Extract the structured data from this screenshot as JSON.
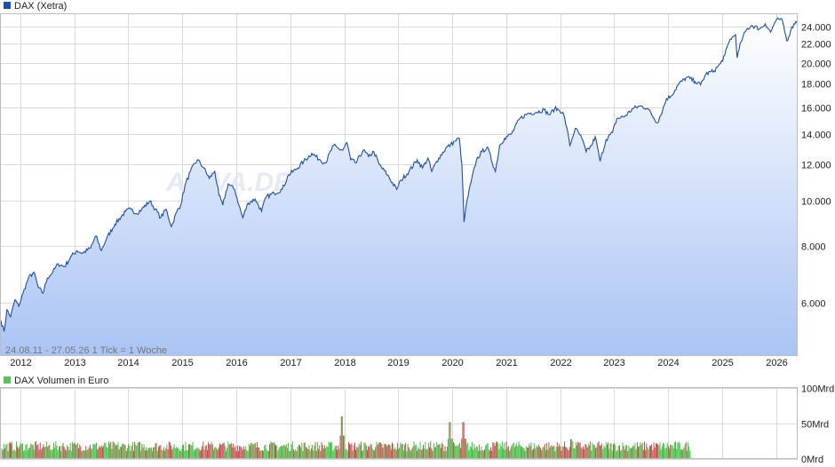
{
  "chart_data": [
    {
      "type": "area",
      "legend": "DAX (Xetra)",
      "range_note": "24.08.11 - 27.05.26   1 Tick = 1 Woche",
      "watermark": "ARIVA.DE",
      "y_scale": "log",
      "ylim": [
        4600,
        25500
      ],
      "y_ticks": [
        6000,
        8000,
        10000,
        12000,
        14000,
        16000,
        18000,
        20000,
        22000,
        24000
      ],
      "y_tick_labels": [
        "6.000",
        "8.000",
        "10.000",
        "12.000",
        "14.000",
        "16.000",
        "18.000",
        "20.000",
        "22.000",
        "24.000"
      ],
      "x_range": [
        2011.64,
        2026.4
      ],
      "x_ticks": [
        2012,
        2013,
        2014,
        2015,
        2016,
        2017,
        2018,
        2019,
        2020,
        2021,
        2022,
        2023,
        2024,
        2025,
        2026
      ],
      "x_tick_labels": [
        "2012",
        "2013",
        "2014",
        "2015",
        "2016",
        "2017",
        "2018",
        "2019",
        "2020",
        "2021",
        "2022",
        "2023",
        "2024",
        "2025",
        "2026"
      ],
      "grid": true,
      "colors": {
        "line": "#1e4fa8",
        "fill_top": "#ffffff",
        "fill_bottom": "#aac4f4",
        "legend_swatch": "#1e4fa8"
      },
      "series": [
        {
          "name": "DAX (Xetra)",
          "points": [
            [
              2011.64,
              5500
            ],
            [
              2011.7,
              5200
            ],
            [
              2011.75,
              5800
            ],
            [
              2011.82,
              5600
            ],
            [
              2011.9,
              6100
            ],
            [
              2011.97,
              5900
            ],
            [
              2012.05,
              6300
            ],
            [
              2012.15,
              6800
            ],
            [
              2012.25,
              7000
            ],
            [
              2012.33,
              6500
            ],
            [
              2012.42,
              6300
            ],
            [
              2012.5,
              6800
            ],
            [
              2012.6,
              7000
            ],
            [
              2012.7,
              7300
            ],
            [
              2012.82,
              7200
            ],
            [
              2012.95,
              7600
            ],
            [
              2013.05,
              7800
            ],
            [
              2013.15,
              7700
            ],
            [
              2013.3,
              7900
            ],
            [
              2013.4,
              8400
            ],
            [
              2013.5,
              7800
            ],
            [
              2013.6,
              8300
            ],
            [
              2013.75,
              8900
            ],
            [
              2013.95,
              9500
            ],
            [
              2014.05,
              9600
            ],
            [
              2014.15,
              9400
            ],
            [
              2014.25,
              9600
            ],
            [
              2014.4,
              10000
            ],
            [
              2014.5,
              9600
            ],
            [
              2014.6,
              9200
            ],
            [
              2014.7,
              9600
            ],
            [
              2014.8,
              8800
            ],
            [
              2014.9,
              9500
            ],
            [
              2014.97,
              9800
            ],
            [
              2015.05,
              10800
            ],
            [
              2015.15,
              11600
            ],
            [
              2015.28,
              12300
            ],
            [
              2015.4,
              11800
            ],
            [
              2015.5,
              11200
            ],
            [
              2015.6,
              11600
            ],
            [
              2015.68,
              10300
            ],
            [
              2015.75,
              9800
            ],
            [
              2015.85,
              10900
            ],
            [
              2015.97,
              10600
            ],
            [
              2016.05,
              9800
            ],
            [
              2016.12,
              9200
            ],
            [
              2016.22,
              9900
            ],
            [
              2016.35,
              10100
            ],
            [
              2016.47,
              9500
            ],
            [
              2016.55,
              10200
            ],
            [
              2016.7,
              10400
            ],
            [
              2016.85,
              10600
            ],
            [
              2016.97,
              11400
            ],
            [
              2017.1,
              11700
            ],
            [
              2017.25,
              12200
            ],
            [
              2017.4,
              12700
            ],
            [
              2017.55,
              12300
            ],
            [
              2017.65,
              12100
            ],
            [
              2017.8,
              13200
            ],
            [
              2017.9,
              13000
            ],
            [
              2017.97,
              12900
            ],
            [
              2018.05,
              13400
            ],
            [
              2018.12,
              12300
            ],
            [
              2018.22,
              12100
            ],
            [
              2018.35,
              12900
            ],
            [
              2018.45,
              12500
            ],
            [
              2018.55,
              12800
            ],
            [
              2018.65,
              12000
            ],
            [
              2018.8,
              11400
            ],
            [
              2018.97,
              10600
            ],
            [
              2019.05,
              11100
            ],
            [
              2019.2,
              11600
            ],
            [
              2019.35,
              12300
            ],
            [
              2019.45,
              11800
            ],
            [
              2019.55,
              12400
            ],
            [
              2019.62,
              11600
            ],
            [
              2019.75,
              12400
            ],
            [
              2019.9,
              13100
            ],
            [
              2019.97,
              13250
            ],
            [
              2020.05,
              13500
            ],
            [
              2020.13,
              13700
            ],
            [
              2020.18,
              12000
            ],
            [
              2020.22,
              9000
            ],
            [
              2020.26,
              9800
            ],
            [
              2020.35,
              11000
            ],
            [
              2020.45,
              12300
            ],
            [
              2020.55,
              12800
            ],
            [
              2020.65,
              13100
            ],
            [
              2020.8,
              11600
            ],
            [
              2020.88,
              13200
            ],
            [
              2020.97,
              13700
            ],
            [
              2021.1,
              14000
            ],
            [
              2021.25,
              15100
            ],
            [
              2021.4,
              15500
            ],
            [
              2021.55,
              15600
            ],
            [
              2021.7,
              15800
            ],
            [
              2021.8,
              15400
            ],
            [
              2021.9,
              15900
            ],
            [
              2021.97,
              15800
            ],
            [
              2022.05,
              15600
            ],
            [
              2022.12,
              14500
            ],
            [
              2022.18,
              13200
            ],
            [
              2022.28,
              14400
            ],
            [
              2022.4,
              13700
            ],
            [
              2022.48,
              12800
            ],
            [
              2022.58,
              13200
            ],
            [
              2022.65,
              13800
            ],
            [
              2022.74,
              12200
            ],
            [
              2022.85,
              13600
            ],
            [
              2022.97,
              14100
            ],
            [
              2023.05,
              15100
            ],
            [
              2023.2,
              15300
            ],
            [
              2023.35,
              15900
            ],
            [
              2023.5,
              16100
            ],
            [
              2023.62,
              15900
            ],
            [
              2023.8,
              14800
            ],
            [
              2023.9,
              15800
            ],
            [
              2023.97,
              16700
            ],
            [
              2024.05,
              16900
            ],
            [
              2024.2,
              18000
            ],
            [
              2024.35,
              18600
            ],
            [
              2024.5,
              18200
            ],
            [
              2024.6,
              17900
            ],
            [
              2024.7,
              18900
            ],
            [
              2024.85,
              19200
            ],
            [
              2024.97,
              19900
            ],
            [
              2025.05,
              20800
            ],
            [
              2025.15,
              22500
            ],
            [
              2025.25,
              23000
            ],
            [
              2025.28,
              20500
            ],
            [
              2025.35,
              22200
            ],
            [
              2025.45,
              23600
            ],
            [
              2025.55,
              24100
            ],
            [
              2025.7,
              23700
            ],
            [
              2025.8,
              24300
            ],
            [
              2025.9,
              23300
            ],
            [
              2025.97,
              24400
            ],
            [
              2026.05,
              24900
            ],
            [
              2026.12,
              24600
            ],
            [
              2026.2,
              22300
            ],
            [
              2026.27,
              23500
            ],
            [
              2026.33,
              24300
            ],
            [
              2026.4,
              24700
            ]
          ]
        }
      ]
    },
    {
      "type": "bar",
      "legend": "DAX Volumen in Euro",
      "ylim": [
        0,
        100
      ],
      "y_unit": "Mrd",
      "y_ticks": [
        0,
        50,
        100
      ],
      "y_tick_labels": [
        "0Mrd",
        "50Mrd",
        "100Mrd"
      ],
      "grid": true,
      "x_range": [
        2011.64,
        2026.4
      ],
      "bars_end": 2024.4,
      "colors": {
        "up": "#33b833",
        "down": "#c33c3c",
        "legend_swatch": "#5cc05c"
      },
      "spikes": [
        [
          2017.95,
          60
        ],
        [
          2019.95,
          52
        ],
        [
          2020.2,
          52
        ],
        [
          2022.2,
          28
        ]
      ],
      "base_volume": 20
    }
  ]
}
